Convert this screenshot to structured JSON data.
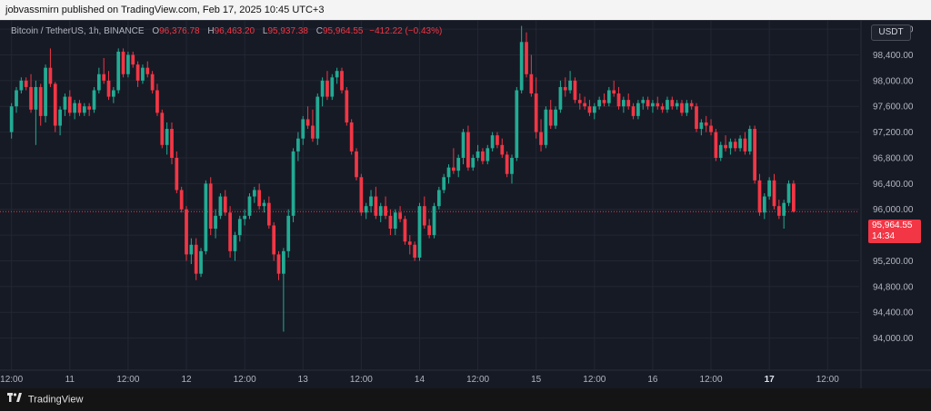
{
  "header": {
    "published_text": "jobvassmirn published on TradingView.com, Feb 17, 2025 10:45 UTC+3"
  },
  "footer": {
    "brand": "TradingView",
    "logo_icon": "tradingview-logo-icon"
  },
  "legend": {
    "symbol": "Bitcoin / TetherUS, 1h, BINANCE",
    "open_label": "O",
    "open_value": "96,376.78",
    "high_label": "H",
    "high_value": "96,463.20",
    "low_label": "L",
    "low_value": "95,937.38",
    "close_label": "C",
    "close_value": "95,964.55",
    "change_value": "−412.22 (−0.43%)"
  },
  "currency": "USDT",
  "last_price": {
    "price": "95,964.55",
    "countdown": "14:34"
  },
  "colors": {
    "up": "#22ab94",
    "down": "#f23645",
    "background": "#161a25",
    "grid": "#232733"
  },
  "chart_data": {
    "type": "candlestick",
    "title": "",
    "ylim": [
      93600,
      98900
    ],
    "y_ticks": [
      94000,
      94400,
      94800,
      95200,
      95600,
      96000,
      96400,
      96800,
      97200,
      97600,
      98000,
      98400,
      98800
    ],
    "y_tick_labels": [
      "94,000.00",
      "94,400.00",
      "94,800.00",
      "95,200.00",
      "95,600.00",
      "96,000.00",
      "96,400.00",
      "96,800.00",
      "97,200.00",
      "97,600.00",
      "98,000.00",
      "98,400.00",
      "98,800.00"
    ],
    "x_ticks": [
      {
        "label": "12:00",
        "index": 0,
        "bold": false
      },
      {
        "label": "11",
        "index": 12,
        "bold": false
      },
      {
        "label": "12:00",
        "index": 24,
        "bold": false
      },
      {
        "label": "12",
        "index": 36,
        "bold": false
      },
      {
        "label": "12:00",
        "index": 48,
        "bold": false
      },
      {
        "label": "13",
        "index": 60,
        "bold": false
      },
      {
        "label": "12:00",
        "index": 72,
        "bold": false
      },
      {
        "label": "14",
        "index": 84,
        "bold": false
      },
      {
        "label": "12:00",
        "index": 96,
        "bold": false
      },
      {
        "label": "15",
        "index": 108,
        "bold": false
      },
      {
        "label": "12:00",
        "index": 120,
        "bold": false
      },
      {
        "label": "16",
        "index": 132,
        "bold": false
      },
      {
        "label": "12:00",
        "index": 144,
        "bold": false
      },
      {
        "label": "17",
        "index": 156,
        "bold": true
      },
      {
        "label": "12:00",
        "index": 168,
        "bold": false
      }
    ],
    "last_price_value": 95964.55,
    "candles": [
      [
        97200,
        97650,
        97100,
        97600
      ],
      [
        97600,
        97900,
        97500,
        97850
      ],
      [
        97850,
        98050,
        97800,
        98000
      ],
      [
        98000,
        98050,
        97850,
        97900
      ],
      [
        97900,
        98100,
        97500,
        97550
      ],
      [
        97550,
        98000,
        97000,
        97900
      ],
      [
        97900,
        97950,
        97300,
        97450
      ],
      [
        97450,
        98250,
        97350,
        98200
      ],
      [
        98200,
        98500,
        97900,
        97950
      ],
      [
        97950,
        97980,
        97200,
        97300
      ],
      [
        97300,
        97600,
        97150,
        97550
      ],
      [
        97550,
        97800,
        97450,
        97750
      ],
      [
        97750,
        97850,
        97450,
        97500
      ],
      [
        97500,
        97700,
        97400,
        97650
      ],
      [
        97650,
        97700,
        97450,
        97500
      ],
      [
        97500,
        97650,
        97450,
        97600
      ],
      [
        97600,
        97650,
        97450,
        97550
      ],
      [
        97550,
        97900,
        97500,
        97850
      ],
      [
        97850,
        98200,
        97800,
        98100
      ],
      [
        98100,
        98350,
        97950,
        98000
      ],
      [
        98000,
        98150,
        97700,
        97750
      ],
      [
        97750,
        97900,
        97650,
        97850
      ],
      [
        97850,
        98500,
        97800,
        98450
      ],
      [
        98450,
        98500,
        98050,
        98100
      ],
      [
        98100,
        98450,
        98050,
        98400
      ],
      [
        98400,
        98450,
        98200,
        98250
      ],
      [
        98250,
        98300,
        97900,
        98000
      ],
      [
        98000,
        98250,
        97950,
        98200
      ],
      [
        98200,
        98300,
        98050,
        98100
      ],
      [
        98100,
        98150,
        97800,
        97850
      ],
      [
        97850,
        97950,
        97450,
        97500
      ],
      [
        97500,
        97550,
        96950,
        97000
      ],
      [
        97000,
        97350,
        96850,
        97250
      ],
      [
        97250,
        97350,
        96700,
        96800
      ],
      [
        96800,
        96900,
        96250,
        96300
      ],
      [
        96300,
        96350,
        95950,
        96000
      ],
      [
        96000,
        96050,
        95200,
        95300
      ],
      [
        95300,
        95550,
        95150,
        95450
      ],
      [
        95450,
        95550,
        94900,
        95000
      ],
      [
        95000,
        95400,
        94950,
        95350
      ],
      [
        95350,
        96450,
        95300,
        96400
      ],
      [
        96400,
        96500,
        95600,
        95700
      ],
      [
        95700,
        96000,
        95550,
        95900
      ],
      [
        95900,
        96250,
        95850,
        96200
      ],
      [
        96200,
        96300,
        95900,
        95950
      ],
      [
        95950,
        96050,
        95250,
        95350
      ],
      [
        95350,
        95650,
        95200,
        95600
      ],
      [
        95600,
        95900,
        95500,
        95850
      ],
      [
        95850,
        96000,
        95750,
        95900
      ],
      [
        95900,
        96250,
        95850,
        96200
      ],
      [
        96200,
        96350,
        96100,
        96300
      ],
      [
        96300,
        96400,
        96000,
        96050
      ],
      [
        96050,
        96150,
        95950,
        96100
      ],
      [
        96100,
        96200,
        95700,
        95750
      ],
      [
        95750,
        95800,
        95200,
        95300
      ],
      [
        95300,
        95350,
        94900,
        95000
      ],
      [
        95000,
        95400,
        94100,
        95350
      ],
      [
        95350,
        96000,
        95250,
        95900
      ],
      [
        95900,
        96950,
        95800,
        96900
      ],
      [
        96900,
        97200,
        96750,
        97100
      ],
      [
        97100,
        97450,
        97000,
        97400
      ],
      [
        97400,
        97600,
        97250,
        97300
      ],
      [
        97300,
        97550,
        97050,
        97100
      ],
      [
        97100,
        97800,
        97000,
        97750
      ],
      [
        97750,
        98050,
        97600,
        98000
      ],
      [
        98000,
        98150,
        97700,
        97750
      ],
      [
        97750,
        98100,
        97700,
        98050
      ],
      [
        98050,
        98200,
        97950,
        98150
      ],
      [
        98150,
        98200,
        97800,
        97850
      ],
      [
        97850,
        97900,
        97300,
        97350
      ],
      [
        97350,
        97400,
        96850,
        96900
      ],
      [
        96900,
        96950,
        96450,
        96500
      ],
      [
        96500,
        96550,
        95900,
        95950
      ],
      [
        95950,
        96100,
        95850,
        96050
      ],
      [
        96050,
        96300,
        95950,
        96200
      ],
      [
        96200,
        96350,
        95850,
        95900
      ],
      [
        95900,
        96100,
        95800,
        96050
      ],
      [
        96050,
        96200,
        95850,
        95900
      ],
      [
        95900,
        96000,
        95600,
        95700
      ],
      [
        95700,
        96000,
        95600,
        95950
      ],
      [
        95950,
        96050,
        95800,
        95850
      ],
      [
        95850,
        95900,
        95450,
        95500
      ],
      [
        95500,
        95600,
        95300,
        95450
      ],
      [
        95450,
        95500,
        95200,
        95250
      ],
      [
        95250,
        96100,
        95200,
        96050
      ],
      [
        96050,
        96200,
        95700,
        95750
      ],
      [
        95750,
        95850,
        95550,
        95600
      ],
      [
        95600,
        96100,
        95550,
        96050
      ],
      [
        96050,
        96350,
        96000,
        96300
      ],
      [
        96300,
        96550,
        96250,
        96500
      ],
      [
        96500,
        96700,
        96400,
        96650
      ],
      [
        96650,
        96950,
        96550,
        96600
      ],
      [
        96600,
        96850,
        96500,
        96800
      ],
      [
        96800,
        97250,
        96700,
        97200
      ],
      [
        97200,
        97300,
        96600,
        96650
      ],
      [
        96650,
        96850,
        96600,
        96800
      ],
      [
        96800,
        97000,
        96750,
        96900
      ],
      [
        96900,
        96950,
        96700,
        96750
      ],
      [
        96750,
        97000,
        96700,
        96950
      ],
      [
        96950,
        97200,
        96900,
        97150
      ],
      [
        97150,
        97200,
        96950,
        97000
      ],
      [
        97000,
        97100,
        96800,
        96850
      ],
      [
        96850,
        96900,
        96500,
        96550
      ],
      [
        96550,
        96850,
        96400,
        96800
      ],
      [
        96800,
        97900,
        96750,
        97850
      ],
      [
        97850,
        98850,
        97800,
        98600
      ],
      [
        98600,
        98750,
        98050,
        98100
      ],
      [
        98100,
        98400,
        97750,
        97800
      ],
      [
        97800,
        98050,
        97100,
        97200
      ],
      [
        97200,
        97400,
        96900,
        97000
      ],
      [
        97000,
        97600,
        96950,
        97550
      ],
      [
        97550,
        97700,
        97250,
        97300
      ],
      [
        97300,
        97600,
        97250,
        97550
      ],
      [
        97550,
        98000,
        97500,
        97900
      ],
      [
        97900,
        98050,
        97750,
        97850
      ],
      [
        97850,
        98150,
        97800,
        98000
      ],
      [
        98000,
        98050,
        97650,
        97700
      ],
      [
        97700,
        97800,
        97550,
        97650
      ],
      [
        97650,
        97750,
        97550,
        97600
      ],
      [
        97600,
        97700,
        97450,
        97500
      ],
      [
        97500,
        97650,
        97400,
        97600
      ],
      [
        97600,
        97750,
        97550,
        97700
      ],
      [
        97700,
        97800,
        97600,
        97650
      ],
      [
        97650,
        97900,
        97600,
        97850
      ],
      [
        97850,
        98000,
        97750,
        97800
      ],
      [
        97800,
        97900,
        97550,
        97600
      ],
      [
        97600,
        97750,
        97500,
        97700
      ],
      [
        97700,
        97800,
        97550,
        97600
      ],
      [
        97600,
        97650,
        97400,
        97450
      ],
      [
        97450,
        97700,
        97400,
        97650
      ],
      [
        97650,
        97750,
        97550,
        97700
      ],
      [
        97700,
        97750,
        97550,
        97600
      ],
      [
        97600,
        97700,
        97500,
        97650
      ],
      [
        97650,
        97750,
        97550,
        97600
      ],
      [
        97600,
        97650,
        97500,
        97550
      ],
      [
        97550,
        97750,
        97500,
        97700
      ],
      [
        97700,
        97750,
        97550,
        97600
      ],
      [
        97600,
        97700,
        97550,
        97650
      ],
      [
        97650,
        97700,
        97450,
        97500
      ],
      [
        97500,
        97700,
        97450,
        97650
      ],
      [
        97650,
        97700,
        97550,
        97600
      ],
      [
        97600,
        97650,
        97200,
        97250
      ],
      [
        97250,
        97400,
        97150,
        97350
      ],
      [
        97350,
        97450,
        97200,
        97300
      ],
      [
        97300,
        97400,
        97150,
        97200
      ],
      [
        97200,
        97250,
        96750,
        96800
      ],
      [
        96800,
        97050,
        96750,
        97000
      ],
      [
        97000,
        97150,
        96900,
        96950
      ],
      [
        96950,
        97100,
        96850,
        97050
      ],
      [
        97050,
        97100,
        96900,
        96950
      ],
      [
        96950,
        97150,
        96900,
        97100
      ],
      [
        97100,
        97200,
        96850,
        96900
      ],
      [
        96900,
        97300,
        96850,
        97250
      ],
      [
        97250,
        97300,
        96400,
        96450
      ],
      [
        96450,
        96550,
        95900,
        95950
      ],
      [
        95950,
        96250,
        95850,
        96200
      ],
      [
        96200,
        96500,
        96150,
        96450
      ],
      [
        96450,
        96550,
        96000,
        96050
      ],
      [
        96050,
        96150,
        95850,
        95900
      ],
      [
        95900,
        96150,
        95700,
        96100
      ],
      [
        96100,
        96450,
        96050,
        96400
      ],
      [
        96400,
        96450,
        95950,
        95965
      ]
    ]
  }
}
